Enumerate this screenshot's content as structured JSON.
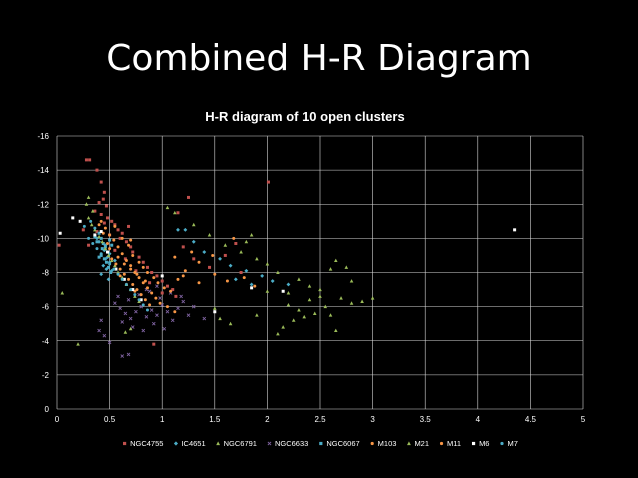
{
  "slide": {
    "title": "Combined H-R Diagram"
  },
  "chart_data": {
    "type": "scatter",
    "title": "H-R diagram of 10 open clusters",
    "xlabel": "",
    "ylabel": "",
    "xlim": [
      0,
      5
    ],
    "ylim": [
      0,
      -16
    ],
    "y_reversed": true,
    "grid": true,
    "legend": "bottom",
    "x_ticks": [
      "0",
      "0.5",
      "1",
      "1.5",
      "2",
      "2.5",
      "3",
      "3.5",
      "4",
      "4.5",
      "5"
    ],
    "y_ticks": [
      "0",
      "-2",
      "-4",
      "-6",
      "-8",
      "-10",
      "-12",
      "-14",
      "-16"
    ],
    "series": [
      {
        "name": "NGC4755",
        "color": "#c0504d",
        "marker": "square",
        "points": [
          [
            0.28,
            -14.6
          ],
          [
            0.31,
            -14.6
          ],
          [
            0.38,
            -14.0
          ],
          [
            2.01,
            -13.3
          ],
          [
            0.42,
            -13.3
          ],
          [
            0.45,
            -12.7
          ],
          [
            0.44,
            -12.3
          ],
          [
            0.4,
            -12.1
          ],
          [
            0.47,
            -11.9
          ],
          [
            0.36,
            -11.6
          ],
          [
            0.42,
            -11.4
          ],
          [
            0.48,
            -11.2
          ],
          [
            0.52,
            -11.0
          ],
          [
            0.55,
            -10.8
          ],
          [
            0.58,
            -10.5
          ],
          [
            0.62,
            -10.3
          ],
          [
            0.6,
            -10.0
          ],
          [
            0.66,
            -9.8
          ],
          [
            0.7,
            -9.5
          ],
          [
            0.45,
            -10.9
          ],
          [
            0.38,
            -10.4
          ],
          [
            0.5,
            -10.2
          ],
          [
            0.72,
            -9.2
          ],
          [
            0.78,
            -8.9
          ],
          [
            0.82,
            -8.6
          ],
          [
            0.86,
            -8.3
          ],
          [
            0.9,
            -8.0
          ],
          [
            0.95,
            -7.8
          ],
          [
            1.0,
            -7.5
          ],
          [
            1.05,
            -7.2
          ],
          [
            1.1,
            -7.0
          ],
          [
            1.2,
            -9.5
          ],
          [
            1.3,
            -8.8
          ],
          [
            1.45,
            -8.3
          ],
          [
            1.6,
            -9.0
          ],
          [
            1.25,
            -12.4
          ],
          [
            1.15,
            -11.5
          ],
          [
            0.3,
            -9.6
          ],
          [
            0.25,
            -10.5
          ],
          [
            0.55,
            -9.3
          ],
          [
            0.65,
            -8.8
          ],
          [
            0.75,
            -8.1
          ],
          [
            0.88,
            -7.4
          ],
          [
            1.0,
            -6.8
          ],
          [
            1.13,
            -6.6
          ],
          [
            0.02,
            -9.6
          ],
          [
            0.92,
            -3.8
          ],
          [
            1.7,
            -9.7
          ],
          [
            1.75,
            -8.0
          ],
          [
            0.68,
            -10.7
          ]
        ]
      },
      {
        "name": "IC4651",
        "color": "#4bacc6",
        "marker": "diamond",
        "points": [
          [
            1.22,
            -10.5
          ],
          [
            1.15,
            -10.5
          ],
          [
            1.3,
            -9.8
          ],
          [
            1.4,
            -9.2
          ],
          [
            1.55,
            -8.8
          ],
          [
            1.65,
            -8.4
          ],
          [
            1.8,
            -8.1
          ],
          [
            1.95,
            -7.8
          ],
          [
            2.05,
            -7.5
          ],
          [
            2.2,
            -7.3
          ],
          [
            1.7,
            -7.6
          ],
          [
            1.85,
            -7.3
          ],
          [
            0.4,
            -9.8
          ],
          [
            0.45,
            -9.3
          ],
          [
            0.48,
            -8.9
          ],
          [
            0.5,
            -8.6
          ],
          [
            0.44,
            -8.4
          ],
          [
            0.52,
            -8.1
          ],
          [
            0.42,
            -7.9
          ],
          [
            0.46,
            -9.6
          ],
          [
            0.5,
            -9.1
          ],
          [
            0.38,
            -10.0
          ],
          [
            0.55,
            -8.7
          ],
          [
            0.47,
            -8.2
          ],
          [
            0.49,
            -7.6
          ]
        ]
      },
      {
        "name": "NGC6791",
        "color": "#9bbb59",
        "marker": "triangle",
        "points": [
          [
            1.05,
            -11.8
          ],
          [
            1.12,
            -11.5
          ],
          [
            1.3,
            -10.8
          ],
          [
            1.45,
            -10.2
          ],
          [
            1.85,
            -10.2
          ],
          [
            1.6,
            -9.6
          ],
          [
            1.75,
            -9.2
          ],
          [
            1.9,
            -8.8
          ],
          [
            2.0,
            -8.5
          ],
          [
            2.1,
            -8.0
          ],
          [
            2.3,
            -7.6
          ],
          [
            2.4,
            -7.2
          ],
          [
            2.5,
            -7.0
          ],
          [
            2.6,
            -8.2
          ],
          [
            2.65,
            -8.7
          ],
          [
            2.75,
            -8.3
          ],
          [
            2.8,
            -7.5
          ],
          [
            2.9,
            -6.3
          ],
          [
            2.7,
            -6.5
          ],
          [
            2.55,
            -6.0
          ],
          [
            2.45,
            -5.6
          ],
          [
            2.35,
            -5.4
          ],
          [
            2.25,
            -5.2
          ],
          [
            2.15,
            -4.8
          ],
          [
            2.1,
            -4.4
          ],
          [
            2.2,
            -6.1
          ],
          [
            2.3,
            -5.8
          ],
          [
            2.4,
            -6.4
          ],
          [
            2.5,
            -6.6
          ],
          [
            2.6,
            -5.5
          ],
          [
            2.65,
            -4.6
          ],
          [
            3.0,
            -6.5
          ],
          [
            1.65,
            -5.0
          ],
          [
            1.55,
            -5.3
          ],
          [
            1.5,
            -5.9
          ],
          [
            1.9,
            -5.5
          ],
          [
            0.05,
            -6.8
          ],
          [
            0.2,
            -3.8
          ],
          [
            0.7,
            -4.7
          ],
          [
            0.65,
            -4.5
          ],
          [
            0.3,
            -12.4
          ],
          [
            1.8,
            -9.8
          ],
          [
            2.0,
            -6.9
          ],
          [
            2.2,
            -6.8
          ],
          [
            2.8,
            -6.2
          ]
        ]
      },
      {
        "name": "NGC6633",
        "color": "#8064a2",
        "marker": "cross",
        "points": [
          [
            0.55,
            -6.2
          ],
          [
            0.6,
            -5.9
          ],
          [
            0.65,
            -5.6
          ],
          [
            0.7,
            -5.3
          ],
          [
            0.75,
            -5.7
          ],
          [
            0.8,
            -6.0
          ],
          [
            0.85,
            -5.4
          ],
          [
            0.9,
            -5.8
          ],
          [
            0.95,
            -5.5
          ],
          [
            1.0,
            -6.1
          ],
          [
            1.05,
            -5.7
          ],
          [
            1.1,
            -5.2
          ],
          [
            1.15,
            -5.9
          ],
          [
            1.2,
            -6.3
          ],
          [
            1.25,
            -5.5
          ],
          [
            1.3,
            -6.0
          ],
          [
            1.4,
            -5.3
          ],
          [
            0.62,
            -5.1
          ],
          [
            0.72,
            -4.8
          ],
          [
            0.82,
            -4.6
          ],
          [
            0.92,
            -5.0
          ],
          [
            1.02,
            -4.7
          ],
          [
            0.58,
            -6.6
          ],
          [
            0.68,
            -6.4
          ],
          [
            0.78,
            -6.7
          ],
          [
            0.88,
            -6.9
          ],
          [
            0.98,
            -6.5
          ],
          [
            1.08,
            -6.8
          ],
          [
            0.45,
            -4.3
          ],
          [
            0.5,
            -3.9
          ],
          [
            0.62,
            -3.1
          ],
          [
            0.68,
            -3.2
          ],
          [
            0.4,
            -4.6
          ],
          [
            0.85,
            -7.0
          ],
          [
            0.95,
            -7.2
          ],
          [
            1.18,
            -6.6
          ],
          [
            0.42,
            -5.2
          ]
        ]
      },
      {
        "name": "NGC6067",
        "color": "#4bacc6",
        "marker": "square",
        "points": [
          [
            0.4,
            -10.3
          ],
          [
            0.42,
            -10.0
          ],
          [
            0.44,
            -9.7
          ],
          [
            0.46,
            -9.5
          ],
          [
            0.48,
            -9.2
          ],
          [
            0.42,
            -9.0
          ],
          [
            0.45,
            -8.8
          ],
          [
            0.47,
            -8.6
          ],
          [
            0.4,
            -8.9
          ],
          [
            0.43,
            -9.4
          ],
          [
            0.5,
            -9.9
          ],
          [
            0.52,
            -9.6
          ],
          [
            0.38,
            -9.8
          ],
          [
            0.36,
            -10.1
          ],
          [
            0.49,
            -8.3
          ],
          [
            0.51,
            -8.0
          ]
        ]
      },
      {
        "name": "M103",
        "color": "#f79646",
        "marker": "circle",
        "points": [
          [
            0.55,
            -10.7
          ],
          [
            0.62,
            -10.0
          ],
          [
            0.68,
            -9.6
          ],
          [
            0.72,
            -9.0
          ],
          [
            0.78,
            -8.6
          ],
          [
            0.82,
            -8.3
          ],
          [
            0.86,
            -8.0
          ],
          [
            0.92,
            -7.7
          ],
          [
            0.96,
            -7.4
          ],
          [
            1.02,
            -7.1
          ],
          [
            1.08,
            -6.9
          ],
          [
            1.15,
            -7.6
          ],
          [
            1.22,
            -8.1
          ],
          [
            1.35,
            -8.6
          ],
          [
            1.5,
            -7.9
          ],
          [
            1.62,
            -7.5
          ],
          [
            1.78,
            -7.7
          ],
          [
            1.88,
            -7.2
          ],
          [
            0.5,
            -9.4
          ],
          [
            0.58,
            -8.9
          ],
          [
            0.64,
            -8.5
          ],
          [
            0.7,
            -8.2
          ],
          [
            0.76,
            -7.9
          ],
          [
            0.84,
            -7.5
          ],
          [
            0.6,
            -7.8
          ],
          [
            0.66,
            -7.3
          ],
          [
            0.74,
            -6.9
          ],
          [
            1.12,
            -8.9
          ],
          [
            1.28,
            -9.2
          ],
          [
            1.48,
            -9.0
          ],
          [
            1.68,
            -10.0
          ],
          [
            0.7,
            -9.9
          ]
        ]
      },
      {
        "name": "M21",
        "color": "#9bbb59",
        "marker": "triangle",
        "points": [
          [
            0.3,
            -11.2
          ],
          [
            0.33,
            -10.8
          ],
          [
            0.36,
            -10.5
          ],
          [
            0.4,
            -10.1
          ],
          [
            0.43,
            -9.8
          ],
          [
            0.46,
            -9.4
          ],
          [
            0.49,
            -9.0
          ],
          [
            0.52,
            -8.7
          ],
          [
            0.55,
            -8.4
          ],
          [
            0.58,
            -8.0
          ],
          [
            0.62,
            -7.7
          ],
          [
            0.66,
            -7.3
          ],
          [
            0.7,
            -7.0
          ],
          [
            0.74,
            -6.6
          ],
          [
            0.78,
            -6.3
          ],
          [
            0.34,
            -11.6
          ],
          [
            0.28,
            -12.0
          ]
        ]
      },
      {
        "name": "M11",
        "color": "#f79646",
        "marker": "circle",
        "points": [
          [
            0.42,
            -11.0
          ],
          [
            0.46,
            -10.6
          ],
          [
            0.5,
            -10.2
          ],
          [
            0.54,
            -9.9
          ],
          [
            0.58,
            -9.5
          ],
          [
            0.62,
            -9.1
          ],
          [
            0.66,
            -8.7
          ],
          [
            0.7,
            -8.4
          ],
          [
            0.74,
            -8.0
          ],
          [
            0.78,
            -7.7
          ],
          [
            0.82,
            -7.4
          ],
          [
            0.86,
            -7.1
          ],
          [
            0.9,
            -6.8
          ],
          [
            0.94,
            -6.5
          ],
          [
            0.98,
            -6.2
          ],
          [
            0.52,
            -8.8
          ],
          [
            0.56,
            -8.5
          ],
          [
            0.6,
            -8.2
          ],
          [
            0.64,
            -7.9
          ],
          [
            0.68,
            -7.6
          ],
          [
            0.72,
            -7.3
          ],
          [
            0.76,
            -7.0
          ],
          [
            0.8,
            -6.7
          ],
          [
            0.84,
            -6.4
          ],
          [
            0.88,
            -6.1
          ],
          [
            0.48,
            -9.7
          ],
          [
            0.4,
            -10.8
          ],
          [
            0.44,
            -10.3
          ],
          [
            1.05,
            -6.0
          ],
          [
            1.12,
            -5.7
          ],
          [
            1.2,
            -7.8
          ],
          [
            1.35,
            -7.4
          ]
        ]
      },
      {
        "name": "M6",
        "color": "#ffffff",
        "marker": "square",
        "points": [
          [
            4.35,
            -10.5
          ],
          [
            0.03,
            -10.3
          ],
          [
            0.15,
            -11.2
          ],
          [
            0.22,
            -11.0
          ],
          [
            0.42,
            -10.4
          ],
          [
            0.48,
            -9.2
          ],
          [
            0.56,
            -8.2
          ],
          [
            0.64,
            -7.6
          ],
          [
            0.72,
            -7.0
          ],
          [
            0.8,
            -6.4
          ],
          [
            1.0,
            -7.8
          ],
          [
            1.5,
            -5.7
          ],
          [
            2.15,
            -6.9
          ],
          [
            1.85,
            -7.1
          ],
          [
            0.36,
            -10.2
          ]
        ]
      },
      {
        "name": "M7",
        "color": "#4bacc6",
        "marker": "circle",
        "points": [
          [
            0.3,
            -10.0
          ],
          [
            0.34,
            -9.7
          ],
          [
            0.38,
            -9.4
          ],
          [
            0.42,
            -9.1
          ],
          [
            0.46,
            -8.8
          ],
          [
            0.5,
            -8.5
          ],
          [
            0.54,
            -8.2
          ],
          [
            0.58,
            -7.9
          ],
          [
            0.62,
            -7.6
          ],
          [
            0.66,
            -7.3
          ],
          [
            0.7,
            -7.0
          ],
          [
            0.74,
            -6.7
          ],
          [
            0.78,
            -6.4
          ],
          [
            0.82,
            -6.1
          ],
          [
            0.86,
            -5.8
          ],
          [
            0.36,
            -10.6
          ],
          [
            0.32,
            -11.0
          ],
          [
            0.26,
            -10.7
          ]
        ]
      }
    ]
  }
}
